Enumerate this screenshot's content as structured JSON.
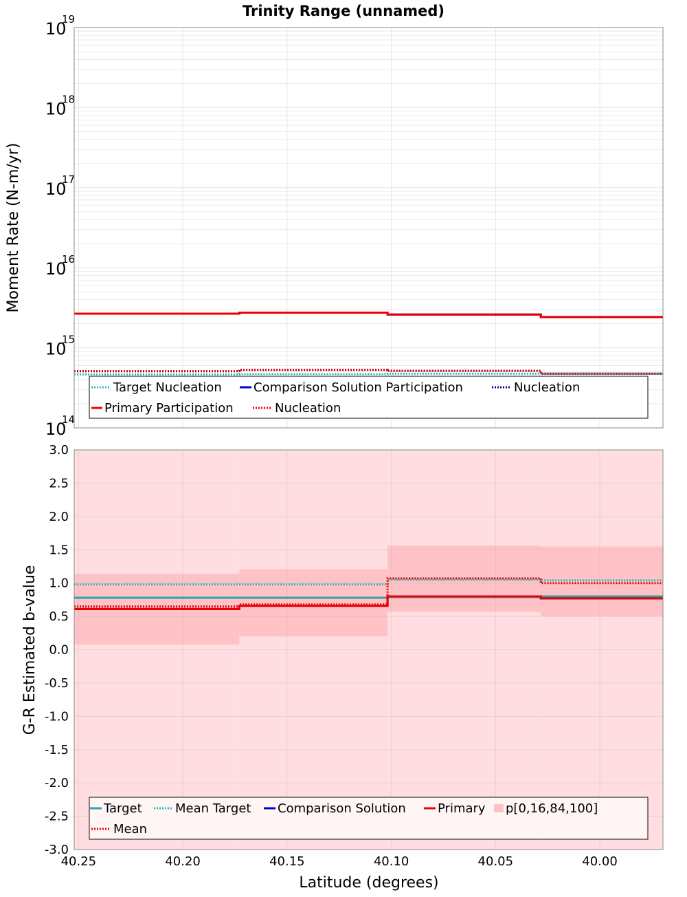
{
  "title": "Trinity Range (unnamed)",
  "colors": {
    "target": "#2aa6a6",
    "mean_target": "#1fbcbc",
    "comparison": "#0000cc",
    "primary": "#ee0000",
    "mean": "#ee0000",
    "band_outer": "#ffdde0",
    "band_inner": "#ffc2c6",
    "grid": "#e6e6e6"
  },
  "chart_data": [
    {
      "type": "line",
      "panel": "top",
      "ylabel": "Moment Rate (N-m/yr)",
      "yscale": "log",
      "ylim": [
        100000000000000.0,
        1e+19
      ],
      "xlim": [
        40.2521,
        39.9697
      ],
      "x_reversed": true,
      "y_tick_labels": [
        {
          "base": "10",
          "exp": "14"
        },
        {
          "base": "10",
          "exp": "15"
        },
        {
          "base": "10",
          "exp": "16"
        },
        {
          "base": "10",
          "exp": "17"
        },
        {
          "base": "10",
          "exp": "18"
        },
        {
          "base": "10",
          "exp": "19"
        }
      ],
      "bin_edges": [
        40.2521,
        40.1729,
        40.1018,
        40.0283,
        39.9697
      ],
      "series": [
        {
          "key": "target_nucleation",
          "style": "dotted",
          "color": "#1fbcbc",
          "values": [
            465000000000000.0,
            470000000000000.0,
            475000000000000.0,
            475000000000000.0
          ]
        },
        {
          "key": "comparison_participation",
          "style": "solid",
          "color": "#0000cc",
          "values": [
            2670000000000000.0,
            2750000000000000.0,
            2600000000000000.0,
            2420000000000000.0
          ]
        },
        {
          "key": "comparison_nucleation",
          "style": "dotted",
          "color": "#0000aa",
          "values": [
            510000000000000.0,
            530000000000000.0,
            515000000000000.0,
            475000000000000.0
          ]
        },
        {
          "key": "primary_participation",
          "style": "solid",
          "color": "#ee0000",
          "values": [
            2670000000000000.0,
            2750000000000000.0,
            2600000000000000.0,
            2420000000000000.0
          ]
        },
        {
          "key": "primary_nucleation",
          "style": "dotted",
          "color": "#ee0000",
          "values": [
            510000000000000.0,
            530000000000000.0,
            515000000000000.0,
            475000000000000.0
          ]
        }
      ],
      "legend": {
        "placement": "bottom-left",
        "entries": [
          {
            "label": "Target Nucleation",
            "style": "dotted",
            "color": "#1fbcbc"
          },
          {
            "label": "Comparison Solution Participation",
            "style": "solid",
            "color": "#0000cc"
          },
          {
            "label": "Nucleation",
            "style": "dotted",
            "color": "#0000aa"
          },
          {
            "label": "Primary Participation",
            "style": "solid",
            "color": "#ee0000"
          },
          {
            "label": "Nucleation",
            "style": "dotted",
            "color": "#ee0000"
          }
        ]
      }
    },
    {
      "type": "line",
      "panel": "bottom",
      "xlabel": "Latitude (degrees)",
      "ylabel": "G-R Estimated b-value",
      "ylim": [
        -3.0,
        3.0
      ],
      "xlim": [
        40.2521,
        39.9697
      ],
      "x_reversed": true,
      "x_ticks": [
        "40.25",
        "40.20",
        "40.15",
        "40.10",
        "40.05",
        "40.00"
      ],
      "x_tick_values": [
        40.25,
        40.2,
        40.15,
        40.1,
        40.05,
        40.0
      ],
      "y_ticks": [
        "3.0",
        "2.5",
        "2.0",
        "1.5",
        "1.0",
        "0.5",
        "0.0",
        "-0.5",
        "-1.0",
        "-1.5",
        "-2.0",
        "-2.5",
        "-3.0"
      ],
      "y_tick_values": [
        3,
        2.5,
        2,
        1.5,
        1,
        0.5,
        0,
        -0.5,
        -1,
        -1.5,
        -2,
        -2.5,
        -3
      ],
      "bin_edges": [
        40.2521,
        40.1729,
        40.1018,
        40.0283,
        39.9697
      ],
      "band_outer": {
        "low": [
          -3.0,
          -3.0,
          -3.0,
          -3.0
        ],
        "high": [
          3.0,
          3.0,
          3.0,
          3.0
        ]
      },
      "band_inner": {
        "low": [
          0.08,
          0.2,
          0.57,
          0.5
        ],
        "high": [
          1.14,
          1.21,
          1.56,
          1.55
        ]
      },
      "series": [
        {
          "key": "target",
          "style": "solid",
          "color": "#2aa6a6",
          "values": [
            0.78,
            0.78,
            0.79,
            0.8
          ]
        },
        {
          "key": "mean_target",
          "style": "dotted",
          "color": "#1fbcbc",
          "values": [
            0.98,
            0.98,
            1.05,
            1.04
          ]
        },
        {
          "key": "comparison",
          "style": "solid",
          "color": "#0000cc",
          "values": [
            0.61,
            0.66,
            0.8,
            0.77
          ]
        },
        {
          "key": "primary",
          "style": "solid",
          "color": "#ee0000",
          "values": [
            0.61,
            0.66,
            0.8,
            0.77
          ]
        },
        {
          "key": "mean",
          "style": "dotted",
          "color": "#ee0000",
          "values": [
            0.65,
            0.68,
            1.07,
            1.0
          ]
        }
      ],
      "legend": {
        "placement": "bottom-left",
        "entries": [
          {
            "label": "Target",
            "style": "solid",
            "color": "#2aa6a6"
          },
          {
            "label": "Mean Target",
            "style": "dotted",
            "color": "#1fbcbc"
          },
          {
            "label": "Comparison Solution",
            "style": "solid",
            "color": "#0000cc"
          },
          {
            "label": "Primary",
            "style": "solid",
            "color": "#ee0000"
          },
          {
            "label": "p[0,16,84,100]",
            "style": "fill",
            "color": "#ffc2c6"
          },
          {
            "label": "Mean",
            "style": "dotted",
            "color": "#ee0000"
          }
        ]
      }
    }
  ]
}
